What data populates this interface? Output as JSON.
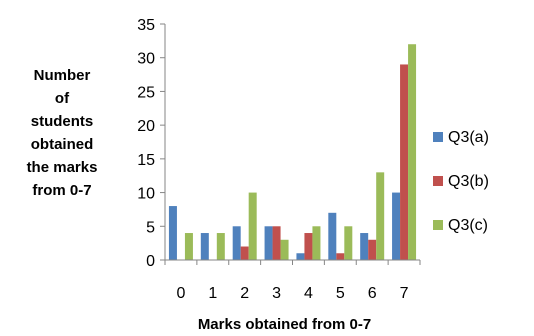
{
  "chart_data": {
    "type": "bar",
    "categories": [
      "0",
      "1",
      "2",
      "3",
      "4",
      "5",
      "6",
      "7"
    ],
    "series": [
      {
        "name": "Q3(a)",
        "values": [
          8,
          4,
          5,
          5,
          1,
          7,
          4,
          10
        ],
        "color": "#4F81BD"
      },
      {
        "name": "Q3(b)",
        "values": [
          0,
          0,
          2,
          5,
          4,
          1,
          3,
          29
        ],
        "color": "#C0504D"
      },
      {
        "name": "Q3(c)",
        "values": [
          4,
          4,
          10,
          3,
          5,
          5,
          13,
          32
        ],
        "color": "#9BBB59"
      }
    ],
    "ylabel_lines": [
      "Number",
      "of",
      "students",
      "obtained",
      "the marks",
      "from 0-7"
    ],
    "xlabel": "Marks obtained from 0-7",
    "ylim": [
      0,
      35
    ],
    "yticks": [
      "0",
      "5",
      "10",
      "15",
      "20",
      "25",
      "30",
      "35"
    ],
    "grid": false,
    "legend_position": "right"
  }
}
